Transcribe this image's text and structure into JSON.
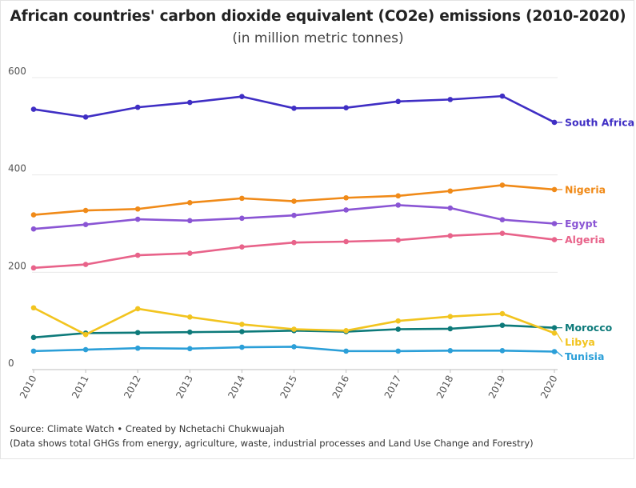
{
  "chart_data": {
    "type": "line",
    "title": "African countries' carbon dioxide equivalent (CO2e) emissions (2010-2020)",
    "subtitle": "(in million metric tonnes)",
    "x": [
      "2010",
      "2011",
      "2012",
      "2013",
      "2014",
      "2015",
      "2016",
      "2017",
      "2018",
      "2019",
      "2020"
    ],
    "ylim": [
      0,
      600
    ],
    "yticks": [
      0,
      200,
      400,
      600
    ],
    "grid": true,
    "legend": "direct-labels-right",
    "series": [
      {
        "name": "South Africa",
        "color": "#3f2ec4",
        "values": [
          535,
          519,
          539,
          549,
          561,
          537,
          538,
          551,
          555,
          562,
          508
        ]
      },
      {
        "name": "Nigeria",
        "color": "#f08a18",
        "values": [
          318,
          327,
          330,
          343,
          352,
          346,
          353,
          357,
          367,
          379,
          370
        ]
      },
      {
        "name": "Egypt",
        "color": "#8a55d4",
        "values": [
          289,
          298,
          309,
          306,
          311,
          317,
          328,
          338,
          332,
          308,
          300
        ]
      },
      {
        "name": "Algeria",
        "color": "#e8638a",
        "values": [
          209,
          216,
          235,
          239,
          252,
          261,
          263,
          266,
          275,
          280,
          267
        ]
      },
      {
        "name": "Morocco",
        "color": "#0d7a7a",
        "values": [
          66,
          75,
          76,
          77,
          78,
          80,
          78,
          83,
          84,
          91,
          86
        ]
      },
      {
        "name": "Libya",
        "color": "#f2c41f",
        "values": [
          127,
          72,
          125,
          108,
          93,
          83,
          80,
          100,
          109,
          115,
          75
        ]
      },
      {
        "name": "Tunisia",
        "color": "#2b9fd8",
        "values": [
          38,
          41,
          44,
          43,
          46,
          47,
          38,
          38,
          39,
          39,
          37
        ]
      }
    ]
  },
  "footer": {
    "source": "Source: Climate Watch • Created by Nchetachi Chukwuajah",
    "note": "(Data shows total GHGs from energy, agriculture, waste, industrial processes and Land Use Change and Forestry)"
  }
}
